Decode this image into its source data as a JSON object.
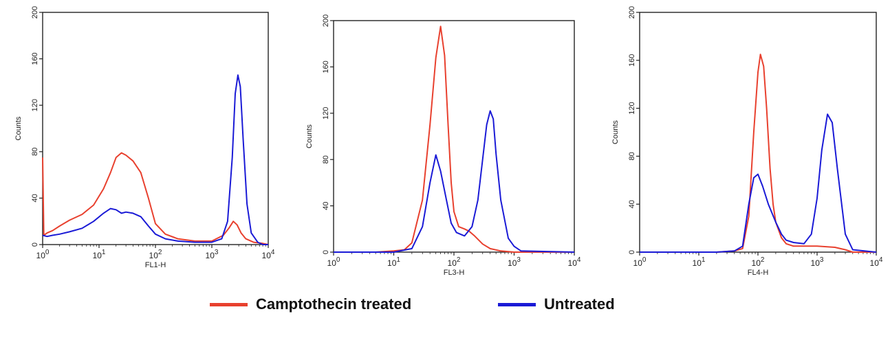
{
  "colors": {
    "treated": "#e8402e",
    "untreated": "#1a1ad6",
    "axis": "#222222"
  },
  "legend": {
    "treated_label": "Camptothecin treated",
    "untreated_label": "Untreated"
  },
  "chart_data": [
    {
      "type": "line",
      "title": "",
      "xlabel": "FL1-H",
      "ylabel": "Counts",
      "xscale": "log",
      "xlim": [
        1,
        10000
      ],
      "ylim": [
        0,
        200
      ],
      "xticks": [
        {
          "v": 1,
          "b": "10",
          "e": "0"
        },
        {
          "v": 10,
          "b": "10",
          "e": "1"
        },
        {
          "v": 100,
          "b": "10",
          "e": "2"
        },
        {
          "v": 1000,
          "b": "10",
          "e": "3"
        },
        {
          "v": 10000,
          "b": "10",
          "e": "4"
        }
      ],
      "yticks": [
        0,
        40,
        80,
        120,
        160,
        200
      ],
      "series": [
        {
          "name": "Camptothecin treated",
          "color_key": "treated",
          "x": [
            1,
            1.05,
            1.2,
            1.5,
            2,
            3,
            5,
            8,
            12,
            16,
            20,
            25,
            30,
            40,
            55,
            75,
            100,
            150,
            250,
            500,
            1000,
            1600,
            2000,
            2400,
            2800,
            3300,
            4000,
            5500,
            8000,
            10000
          ],
          "y": [
            75,
            8,
            10,
            12,
            16,
            21,
            26,
            34,
            48,
            62,
            75,
            79,
            77,
            72,
            62,
            40,
            18,
            9,
            5,
            3,
            3,
            8,
            14,
            20,
            17,
            10,
            5,
            2,
            1,
            0
          ]
        },
        {
          "name": "Untreated",
          "color_key": "untreated",
          "x": [
            1,
            1.2,
            1.5,
            2,
            3,
            5,
            8,
            12,
            16,
            20,
            25,
            30,
            40,
            55,
            75,
            100,
            150,
            250,
            500,
            1000,
            1500,
            1900,
            2300,
            2600,
            2900,
            3200,
            3600,
            4200,
            5000,
            6500,
            8000,
            10000
          ],
          "y": [
            8,
            7,
            8,
            9,
            11,
            14,
            20,
            27,
            31,
            30,
            27,
            28,
            27,
            24,
            16,
            9,
            5,
            3,
            2,
            2,
            5,
            20,
            75,
            130,
            146,
            136,
            90,
            35,
            10,
            2,
            0,
            0
          ]
        }
      ]
    },
    {
      "type": "line",
      "title": "",
      "xlabel": "FL3-H",
      "ylabel": "Counts",
      "xscale": "log",
      "xlim": [
        1,
        10000
      ],
      "ylim": [
        0,
        200
      ],
      "xticks": [
        {
          "v": 1,
          "b": "10",
          "e": "0"
        },
        {
          "v": 10,
          "b": "10",
          "e": "1"
        },
        {
          "v": 100,
          "b": "10",
          "e": "2"
        },
        {
          "v": 1000,
          "b": "10",
          "e": "3"
        },
        {
          "v": 10000,
          "b": "10",
          "e": "4"
        }
      ],
      "yticks": [
        0,
        40,
        80,
        120,
        160,
        200
      ],
      "series": [
        {
          "name": "Camptothecin treated",
          "color_key": "treated",
          "x": [
            1,
            5,
            10,
            15,
            20,
            30,
            40,
            50,
            60,
            70,
            80,
            90,
            100,
            120,
            150,
            180,
            220,
            300,
            400,
            600,
            1000,
            10000
          ],
          "y": [
            0,
            0,
            1,
            2,
            8,
            45,
            110,
            168,
            195,
            170,
            110,
            60,
            35,
            22,
            20,
            18,
            14,
            7,
            3,
            1,
            0,
            0
          ]
        },
        {
          "name": "Untreated",
          "color_key": "untreated",
          "x": [
            1,
            10,
            20,
            30,
            40,
            50,
            60,
            75,
            90,
            110,
            150,
            200,
            250,
            300,
            350,
            400,
            450,
            500,
            600,
            800,
            1000,
            1300,
            10000
          ],
          "y": [
            0,
            0,
            3,
            22,
            60,
            84,
            70,
            45,
            25,
            17,
            14,
            22,
            45,
            80,
            110,
            122,
            115,
            85,
            45,
            12,
            5,
            1,
            0
          ]
        }
      ]
    },
    {
      "type": "line",
      "title": "",
      "xlabel": "FL4-H",
      "ylabel": "Counts",
      "xscale": "log",
      "xlim": [
        1,
        10000
      ],
      "ylim": [
        0,
        200
      ],
      "xticks": [
        {
          "v": 1,
          "b": "10",
          "e": "0"
        },
        {
          "v": 10,
          "b": "10",
          "e": "1"
        },
        {
          "v": 100,
          "b": "10",
          "e": "2"
        },
        {
          "v": 1000,
          "b": "10",
          "e": "3"
        },
        {
          "v": 10000,
          "b": "10",
          "e": "4"
        }
      ],
      "yticks": [
        0,
        40,
        80,
        120,
        160,
        200
      ],
      "series": [
        {
          "name": "Camptothecin treated",
          "color_key": "treated",
          "x": [
            1,
            20,
            40,
            55,
            70,
            85,
            100,
            110,
            125,
            140,
            160,
            180,
            200,
            250,
            300,
            400,
            600,
            1000,
            2000,
            3000,
            4000,
            10000
          ],
          "y": [
            0,
            0,
            1,
            3,
            30,
            100,
            150,
            165,
            155,
            120,
            70,
            40,
            25,
            12,
            7,
            5,
            5,
            5,
            4,
            2,
            0,
            0
          ]
        },
        {
          "name": "Untreated",
          "color_key": "untreated",
          "x": [
            1,
            20,
            40,
            55,
            70,
            85,
            100,
            120,
            150,
            200,
            250,
            300,
            400,
            600,
            800,
            1000,
            1200,
            1500,
            1800,
            2200,
            3000,
            4000,
            10000
          ],
          "y": [
            0,
            0,
            1,
            5,
            40,
            62,
            65,
            55,
            40,
            25,
            15,
            10,
            8,
            7,
            15,
            45,
            85,
            115,
            108,
            70,
            15,
            2,
            0
          ]
        }
      ]
    }
  ]
}
